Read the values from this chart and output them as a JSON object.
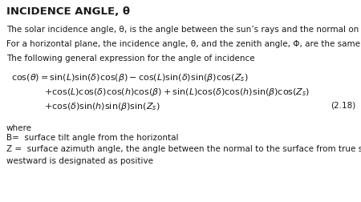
{
  "title": "INCIDENCE ANGLE, θ",
  "line1": "The solar incidence angle, θ, is the angle between the sun’s rays and the normal on a surface.",
  "line2": "For a horizontal plane, the incidence angle, θ, and the zenith angle, Φ, are the same.",
  "line3": "The following general expression for the angle of incidence",
  "eq1": "$\\cos(\\theta) = \\sin(L)\\sin(\\delta)\\cos(\\beta) - \\cos(L)\\sin(\\delta)\\sin(\\beta)\\cos(Z_s)$",
  "eq2": "$+ \\cos(L)\\cos(\\delta)\\cos(h)\\cos(\\beta) + \\sin(L)\\cos(\\delta)\\cos(h)\\sin(\\beta)\\cos(Z_s)$",
  "eq3": "$+ \\cos(\\delta)\\sin(h)\\sin(\\beta)\\sin(Z_s)$",
  "eq_number": "(2.18)",
  "where_text": "where",
  "B_def": "B=  surface tilt angle from the horizontal",
  "Z_def": "Z =  surface azimuth angle, the angle between the normal to the surface from true south,",
  "Z_def2": "westward is designated as positive",
  "bg_color": "#ffffff",
  "text_color": "#1a1a1a",
  "title_fontsize": 9.5,
  "body_fontsize": 7.5,
  "eq_fontsize": 8.0
}
